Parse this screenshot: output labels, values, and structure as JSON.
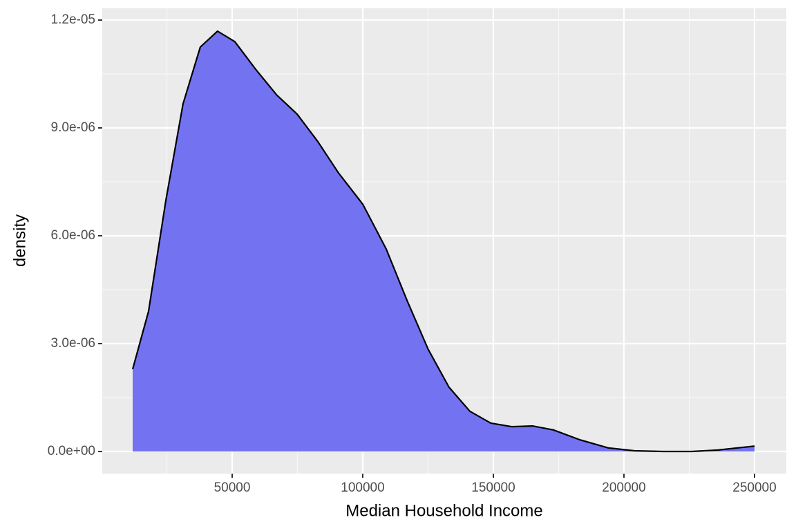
{
  "chart_data": {
    "type": "area",
    "x_label": "Median Household Income",
    "y_label": "density",
    "x": [
      11900,
      18000,
      24600,
      31200,
      37800,
      44400,
      51000,
      59000,
      67000,
      74900,
      82800,
      90700,
      100000,
      109000,
      117000,
      125000,
      133000,
      141000,
      149000,
      157000,
      165000,
      173000,
      183000,
      194000,
      204000,
      215000,
      226000,
      236000,
      250000
    ],
    "series": [
      {
        "color": "#7373f2",
        "line_color": "#000000",
        "values": [
          2.29e-06,
          3.9e-06,
          6.98e-06,
          9.67e-06,
          1.125e-05,
          1.169e-05,
          1.14e-05,
          1.063e-05,
          9.92e-06,
          9.38e-06,
          8.62e-06,
          7.75e-06,
          6.88e-06,
          5.63e-06,
          4.19e-06,
          2.85e-06,
          1.79e-06,
          1.12e-06,
          7.9e-07,
          6.9e-07,
          7.1e-07,
          6e-07,
          3.3e-07,
          1e-07,
          2e-08,
          0,
          0,
          4e-08,
          1.5e-07
        ]
      }
    ],
    "xlim": [
      265,
      262170
    ],
    "ylim": [
      -6.15e-07,
      1.2327e-05
    ],
    "xticks": [
      50000,
      100000,
      150000,
      200000,
      250000
    ],
    "yticks": [
      {
        "value": 0,
        "label": "0.0e+00"
      },
      {
        "value": 3e-06,
        "label": "3.0e-06"
      },
      {
        "value": 6e-06,
        "label": "6.0e-06"
      },
      {
        "value": 9e-06,
        "label": "9.0e-06"
      },
      {
        "value": 1.2e-05,
        "label": "1.2e-05"
      }
    ],
    "x_minor_grid": [
      25000,
      75000,
      125000,
      175000,
      225000
    ],
    "y_minor_grid": [
      1.5e-06,
      4.5e-06,
      7.5e-06,
      1.05e-05
    ],
    "grid": true
  }
}
